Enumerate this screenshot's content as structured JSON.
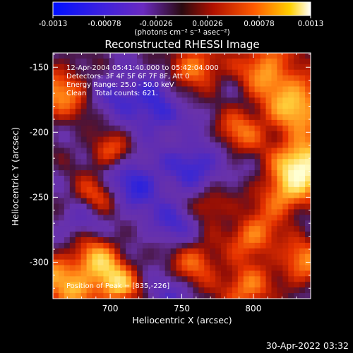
{
  "colorbar": {
    "tick_labels": [
      "-0.0013",
      "-0.00078",
      "-0.00026",
      "0.00026",
      "0.00078",
      "0.0013"
    ],
    "min": -0.0013,
    "max": 0.0013,
    "unit_label": "(photons cm⁻² s⁻¹ asec⁻²)"
  },
  "chart_data": {
    "type": "heatmap",
    "title": "Reconstructed RHESSI Image",
    "xlabel": "Heliocentric X (arcsec)",
    "ylabel": "Heliocentric Y (arcsec)",
    "xlim": [
      660,
      840
    ],
    "ylim": [
      -328,
      -139
    ],
    "x_ticks": [
      700,
      750,
      800
    ],
    "y_ticks": [
      -150,
      -200,
      -250,
      -300
    ],
    "colormap": "blue-purple-red-yellow-white",
    "annotations": [
      "12-Apr-2004 05:41:40.000 to 05:42:04.000",
      "Detectors: 3F 4F 5F 6F 7F 8F, Att 0",
      "Energy Range: 25.0 - 50.0 keV",
      "Clean    Total counts: 621."
    ],
    "peak_label": "Position of Peak = [835,-226]",
    "peak": {
      "x": 835,
      "y": -226
    }
  },
  "footer": {
    "timestamp": "30-Apr-2022 03:32"
  },
  "colors": {
    "background": "#000000",
    "text": "#ffffff"
  }
}
